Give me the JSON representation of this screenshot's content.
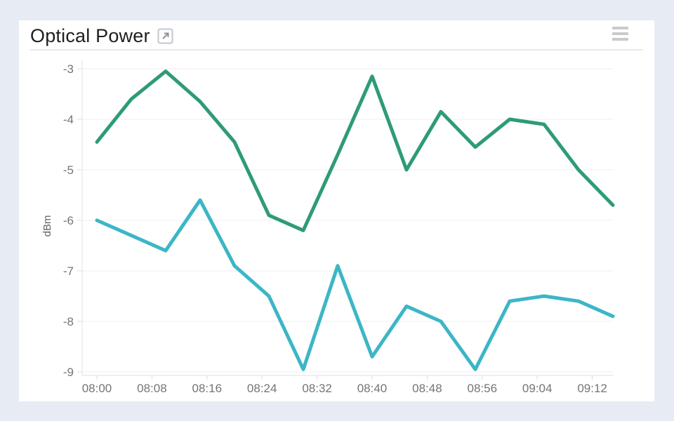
{
  "header": {
    "title": "Optical Power",
    "open_in_new_icon": "open-in-new-icon",
    "menu_icon": "hamburger-menu-icon"
  },
  "colors": {
    "page_background": "#e7ebf4",
    "card_background": "#ffffff",
    "title_text": "#1e1e1e",
    "tick_label": "#757575",
    "axis_title": "#616161",
    "grid_line": "#efefef",
    "axis_line": "#e0e0e0",
    "tick_mark": "#dcdcdc",
    "series_green": "#2e9b78",
    "series_cyan": "#3cb6c6"
  },
  "chart_data": {
    "type": "line",
    "title": "Optical Power",
    "xlabel": "",
    "ylabel": "dBm",
    "ylim": [
      -9,
      -3
    ],
    "y_ticks": [
      -3,
      -4,
      -5,
      -6,
      -7,
      -8,
      -9
    ],
    "x_tick_labels": [
      "08:00",
      "08:08",
      "08:16",
      "08:24",
      "08:32",
      "08:40",
      "08:48",
      "08:56",
      "09:04",
      "09:12"
    ],
    "x_tick_minutes": [
      0,
      8,
      16,
      24,
      32,
      40,
      48,
      56,
      64,
      72
    ],
    "grid": "horizontal-only",
    "legend": "none",
    "point_interval_minutes": 5,
    "x_labels": [
      "08:00",
      "08:05",
      "08:10",
      "08:15",
      "08:20",
      "08:25",
      "08:30",
      "08:35",
      "08:40",
      "08:45",
      "08:50",
      "08:55",
      "09:00",
      "09:05",
      "09:10",
      "09:15"
    ],
    "x_minutes": [
      0,
      5,
      10,
      15,
      20,
      25,
      30,
      35,
      40,
      45,
      50,
      55,
      60,
      65,
      70,
      75
    ],
    "series": [
      {
        "name": "series-1-green",
        "color": "#2e9b78",
        "values": [
          -4.45,
          -3.6,
          -3.05,
          -3.65,
          -4.45,
          -5.9,
          -6.2,
          -4.7,
          -3.15,
          -5.0,
          -3.85,
          -4.55,
          -4.0,
          -4.1,
          -5.0,
          -5.7
        ]
      },
      {
        "name": "series-2-cyan",
        "color": "#3cb6c6",
        "values": [
          -6.0,
          -6.3,
          -6.6,
          -5.6,
          -6.9,
          -7.5,
          -8.95,
          -6.9,
          -8.7,
          -7.7,
          -8.0,
          -8.95,
          -7.6,
          -7.5,
          -7.6,
          -7.9
        ]
      }
    ]
  }
}
